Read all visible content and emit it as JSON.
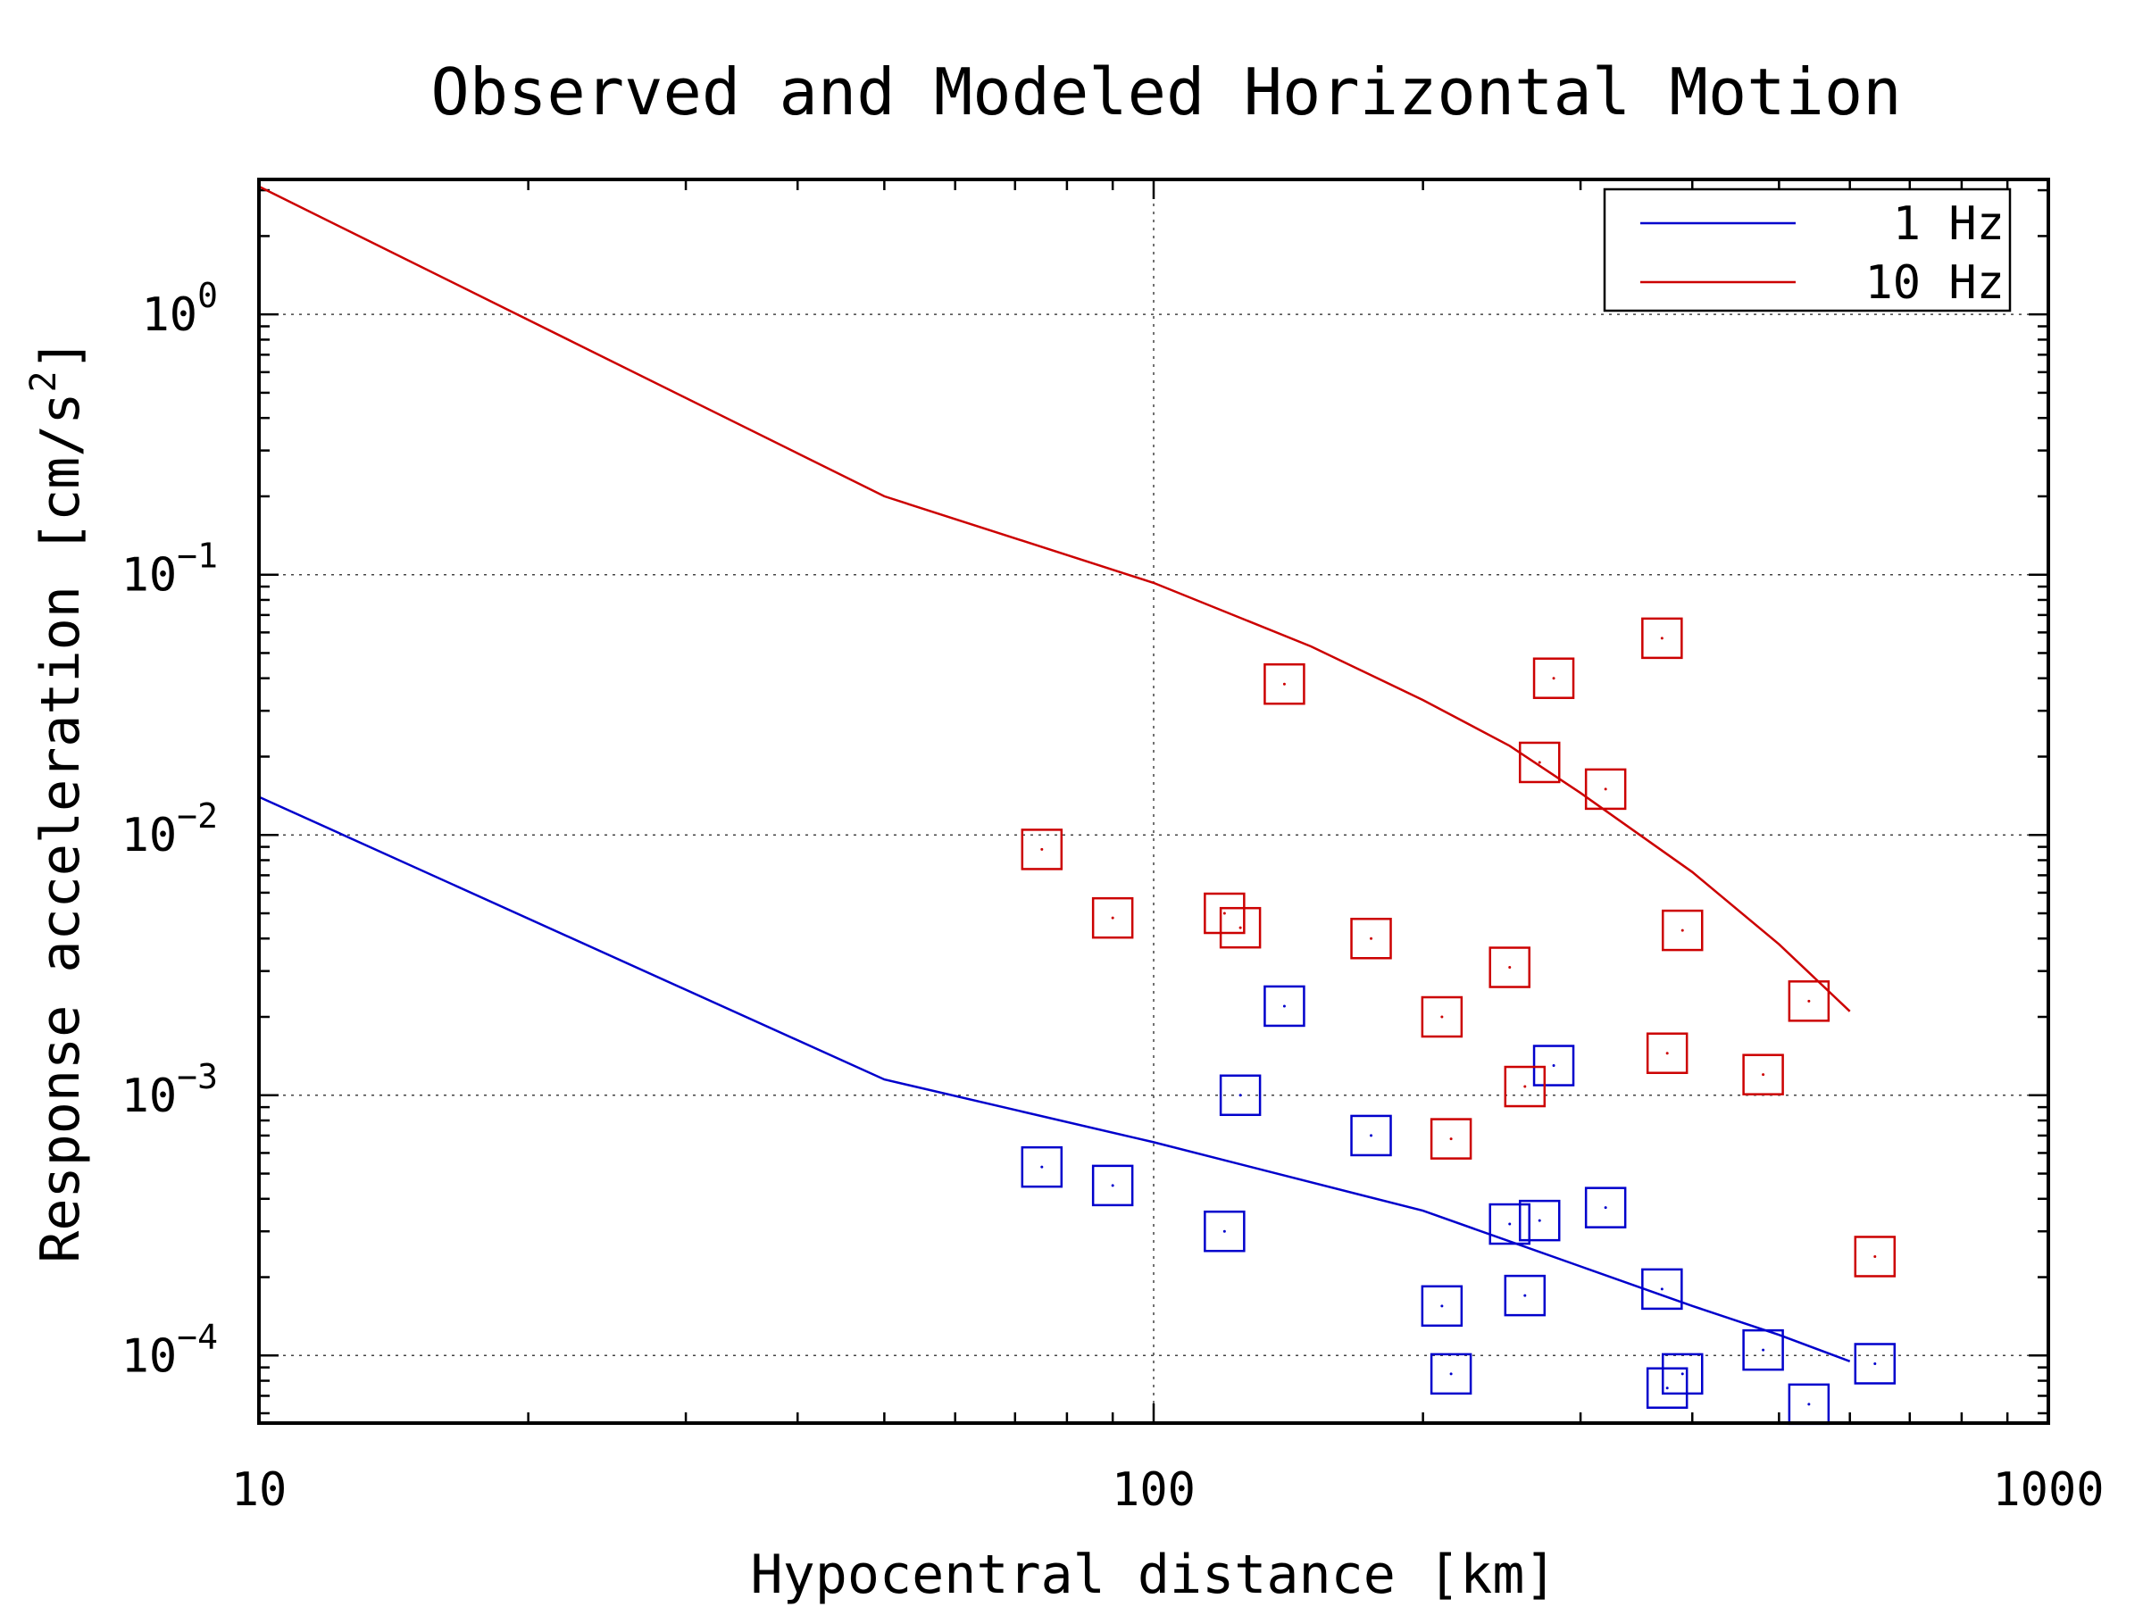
{
  "chart_data": {
    "type": "scatter",
    "title": "Observed and Modeled Horizontal Motion",
    "xlabel": "Hypocentral distance [km]",
    "ylabel_main": "Response acceleration [cm/s",
    "ylabel_sup": "2",
    "ylabel_close": "]",
    "x_scale": "log",
    "y_scale": "log",
    "xlim": [
      10,
      1000
    ],
    "ylim": [
      5.5e-05,
      3.3
    ],
    "x_ticks": [
      {
        "value": 10,
        "label": "10"
      },
      {
        "value": 100,
        "label": "100"
      },
      {
        "value": 1000,
        "label": "1000"
      }
    ],
    "y_ticks": [
      {
        "value": 1,
        "base": "10",
        "exp": "0"
      },
      {
        "value": 0.1,
        "base": "10",
        "exp": "−1"
      },
      {
        "value": 0.01,
        "base": "10",
        "exp": "−2"
      },
      {
        "value": 0.001,
        "base": "10",
        "exp": "−3"
      },
      {
        "value": 0.0001,
        "base": "10",
        "exp": "−4"
      }
    ],
    "grid": true,
    "legend_position": "top-right",
    "series": [
      {
        "name": "1 Hz",
        "color": "#0000cc",
        "line": [
          [
            10,
            0.014
          ],
          [
            50,
            0.00115
          ],
          [
            100,
            0.00066
          ],
          [
            200,
            0.00036
          ],
          [
            300,
            0.00022
          ],
          [
            400,
            0.000155
          ],
          [
            500,
            0.00012
          ],
          [
            600,
            9.5e-05
          ]
        ],
        "points": [
          [
            75,
            0.00053
          ],
          [
            90,
            0.00045
          ],
          [
            120,
            0.0003
          ],
          [
            125,
            0.001
          ],
          [
            140,
            0.0022
          ],
          [
            175,
            0.0007
          ],
          [
            210,
            0.000155
          ],
          [
            215,
            8.5e-05
          ],
          [
            250,
            0.00032
          ],
          [
            260,
            0.00017
          ],
          [
            270,
            0.00033
          ],
          [
            280,
            0.0013
          ],
          [
            320,
            0.00037
          ],
          [
            370,
            0.00018
          ],
          [
            375,
            7.5e-05
          ],
          [
            390,
            8.5e-05
          ],
          [
            480,
            0.000105
          ],
          [
            540,
            6.5e-05
          ],
          [
            640,
            9.3e-05
          ]
        ]
      },
      {
        "name": "10 Hz",
        "color": "#cc0000",
        "line": [
          [
            10,
            3.1
          ],
          [
            50,
            0.2
          ],
          [
            100,
            0.093
          ],
          [
            150,
            0.053
          ],
          [
            200,
            0.033
          ],
          [
            250,
            0.022
          ],
          [
            300,
            0.0145
          ],
          [
            400,
            0.0072
          ],
          [
            500,
            0.0038
          ],
          [
            600,
            0.0021
          ]
        ],
        "points": [
          [
            75,
            0.0088
          ],
          [
            90,
            0.0048
          ],
          [
            120,
            0.005
          ],
          [
            125,
            0.0044
          ],
          [
            140,
            0.038
          ],
          [
            175,
            0.004
          ],
          [
            210,
            0.002
          ],
          [
            215,
            0.00068
          ],
          [
            250,
            0.0031
          ],
          [
            260,
            0.00108
          ],
          [
            270,
            0.019
          ],
          [
            280,
            0.04
          ],
          [
            320,
            0.015
          ],
          [
            370,
            0.057
          ],
          [
            375,
            0.00145
          ],
          [
            390,
            0.0043
          ],
          [
            480,
            0.0012
          ],
          [
            540,
            0.0023
          ],
          [
            640,
            0.00024
          ]
        ]
      }
    ]
  }
}
